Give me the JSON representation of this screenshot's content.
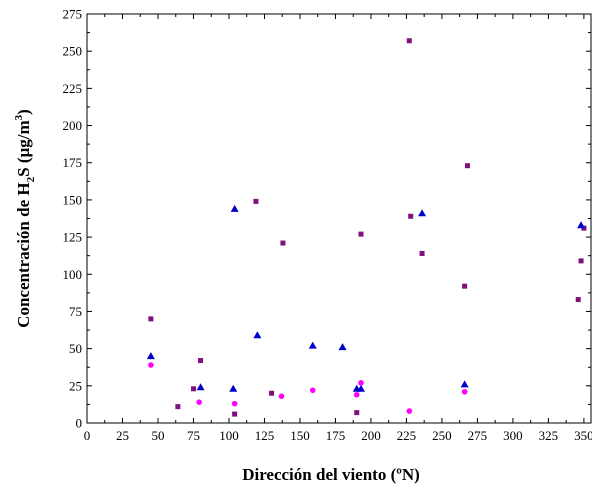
{
  "chart_data": {
    "type": "scatter",
    "xlabel": "Dirección del viento (ºN)",
    "ylabel": {
      "pre": "Concentración de H",
      "sub": "2",
      "mid": "S (µg/m",
      "sup": "3",
      "post": ")"
    },
    "xlim": [
      0,
      355
    ],
    "ylim": [
      0,
      275
    ],
    "xticks": [
      "0",
      "25",
      "50",
      "75",
      "100",
      "125",
      "150",
      "175",
      "200",
      "225",
      "250",
      "275",
      "300",
      "325",
      "350"
    ],
    "yticks": [
      "0",
      "25",
      "50",
      "75",
      "100",
      "125",
      "150",
      "175",
      "200",
      "225",
      "250",
      "275"
    ],
    "grid": false,
    "legend": "none",
    "series": [
      {
        "marker": "square",
        "color": "#800f80",
        "points": [
          [
            45,
            70
          ],
          [
            64,
            11
          ],
          [
            75,
            23
          ],
          [
            80,
            42
          ],
          [
            104,
            6
          ],
          [
            119,
            149
          ],
          [
            130,
            20
          ],
          [
            138,
            121
          ],
          [
            190,
            7
          ],
          [
            193,
            127
          ],
          [
            227,
            257
          ],
          [
            228,
            139
          ],
          [
            236,
            114
          ],
          [
            266,
            92
          ],
          [
            268,
            173
          ],
          [
            346,
            83
          ],
          [
            348,
            109
          ],
          [
            350,
            131
          ]
        ]
      },
      {
        "marker": "triangle",
        "color": "#0000cc",
        "points": [
          [
            45,
            45
          ],
          [
            80,
            24
          ],
          [
            103,
            23
          ],
          [
            104,
            144
          ],
          [
            120,
            59
          ],
          [
            159,
            52
          ],
          [
            180,
            51
          ],
          [
            190,
            23
          ],
          [
            193,
            23
          ],
          [
            236,
            141
          ],
          [
            266,
            26
          ],
          [
            348,
            133
          ]
        ]
      },
      {
        "marker": "circle",
        "color": "#ff00ff",
        "points": [
          [
            45,
            39
          ],
          [
            79,
            14
          ],
          [
            104,
            13
          ],
          [
            137,
            18
          ],
          [
            159,
            22
          ],
          [
            190,
            19
          ],
          [
            193,
            27
          ],
          [
            227,
            8
          ],
          [
            266,
            21
          ]
        ]
      }
    ]
  }
}
